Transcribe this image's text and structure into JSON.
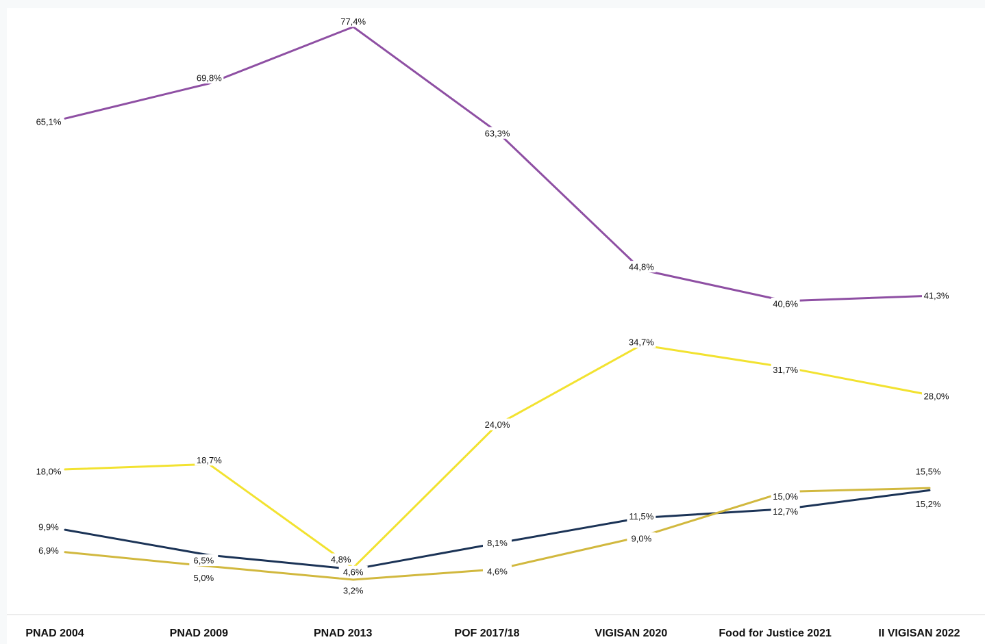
{
  "chart_data": {
    "type": "line",
    "categories": [
      "PNAD 2004",
      "PNAD 2009",
      "PNAD 2013",
      "POF 2017/18",
      "VIGISAN 2020",
      "Food for Justice 2021",
      "II VIGISAN 2022"
    ],
    "series": [
      {
        "color": "#8e4fa3",
        "values": [
          65.1,
          69.8,
          77.4,
          63.3,
          44.8,
          40.6,
          41.3
        ],
        "labels": [
          "65,1%",
          "69,8%",
          "77,4%",
          "63,3%",
          "44,8%",
          "40,6%",
          "41,3%"
        ]
      },
      {
        "color": "#f2e230",
        "values": [
          18.0,
          18.7,
          4.8,
          24.0,
          34.7,
          31.7,
          28.0
        ],
        "labels": [
          "18,0%",
          "18,7%",
          "4,8%",
          "24,0%",
          "34,7%",
          "31,7%",
          "28,0%"
        ]
      },
      {
        "color": "#1b3356",
        "values": [
          9.9,
          6.5,
          4.6,
          8.1,
          11.5,
          12.7,
          15.2
        ],
        "labels": [
          "9,9%",
          "6,5%",
          "4,6%",
          "8,1%",
          "11,5%",
          "12,7%",
          "15,2%"
        ]
      },
      {
        "color": "#d1b83e",
        "values": [
          6.9,
          5.0,
          3.2,
          4.6,
          9.0,
          15.0,
          15.5
        ],
        "labels": [
          "6,9%",
          "5,0%",
          "3,2%",
          "4,6%",
          "9,0%",
          "15,0%",
          "15,5%"
        ]
      }
    ],
    "legend": "none",
    "grid": false
  }
}
